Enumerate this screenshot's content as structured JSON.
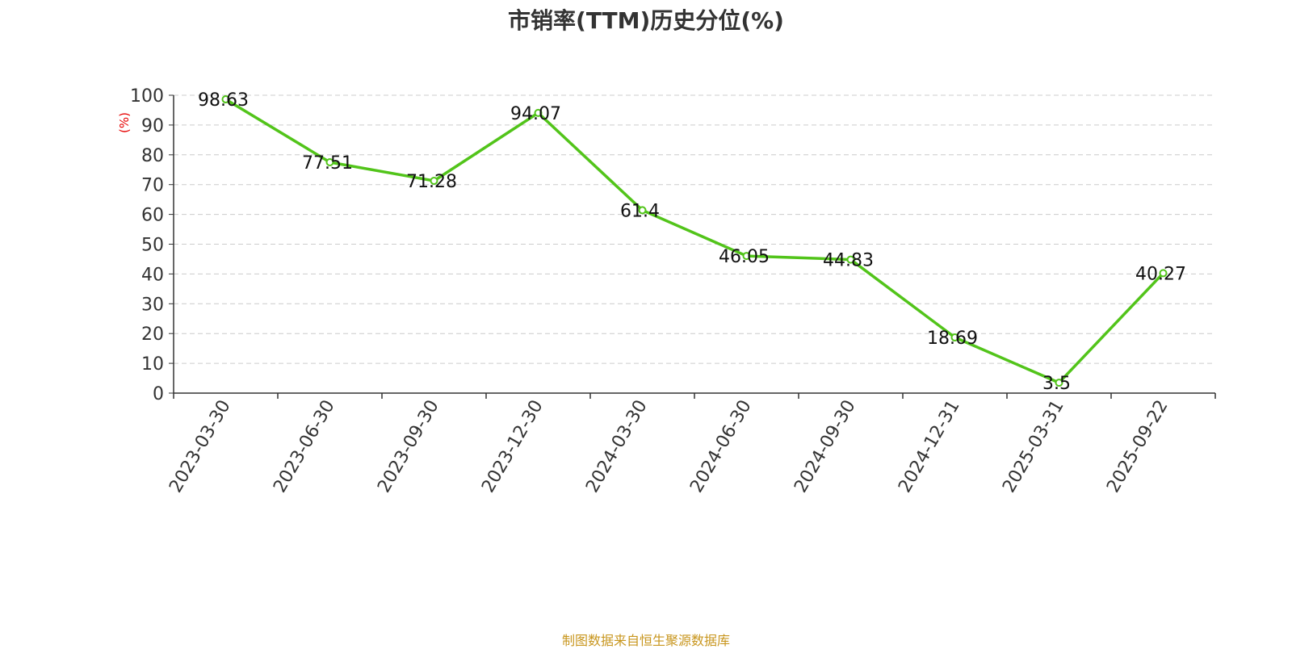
{
  "title": "市销率(TTM)历史分位(%)",
  "source": "制图数据来自恒生聚源数据库",
  "colors": {
    "line": "#52c41a",
    "grid": "#cccccc",
    "axis": "#333333",
    "ylabel": "#e60000",
    "source": "#c8961e"
  },
  "chart_data": {
    "type": "line",
    "title": "市销率(TTM)历史分位(%)",
    "xlabel": "",
    "ylabel": "(%)",
    "ylim": [
      0,
      100
    ],
    "yticks": [
      0,
      10,
      20,
      30,
      40,
      50,
      60,
      70,
      80,
      90,
      100
    ],
    "grid": true,
    "categories": [
      "2023-03-30",
      "2023-06-30",
      "2023-09-30",
      "2023-12-30",
      "2024-03-30",
      "2024-06-30",
      "2024-09-30",
      "2024-12-31",
      "2025-03-31",
      "2025-09-22"
    ],
    "series": [
      {
        "values": [
          98.63,
          77.51,
          71.28,
          94.07,
          61.4,
          46.05,
          44.83,
          18.69,
          3.5,
          40.27
        ]
      }
    ],
    "data_labels": [
      "98.63",
      "77.51",
      "71.28",
      "94.07",
      "61.4",
      "46.05",
      "44.83",
      "18.69",
      "3.5",
      "40.27"
    ]
  }
}
